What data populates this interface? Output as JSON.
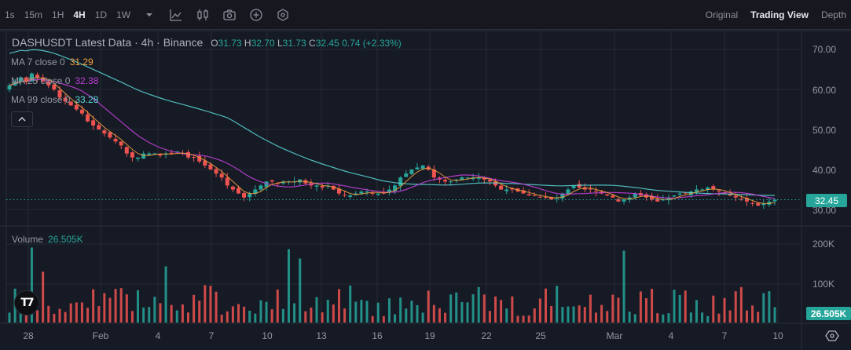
{
  "toolbar": {
    "timeframes": [
      {
        "label": "1s",
        "active": false
      },
      {
        "label": "15m",
        "active": false
      },
      {
        "label": "1H",
        "active": false
      },
      {
        "label": "4H",
        "active": true
      },
      {
        "label": "1D",
        "active": false
      },
      {
        "label": "1W",
        "active": false
      }
    ],
    "icons": [
      "dropdown-caret-icon",
      "indicators-icon",
      "candle-style-icon",
      "camera-icon",
      "add-icon",
      "settings-icon"
    ],
    "views": [
      {
        "label": "Original",
        "active": false
      },
      {
        "label": "Trading View",
        "active": true
      },
      {
        "label": "Depth",
        "active": false
      }
    ]
  },
  "legend": {
    "symbol": "DASHUSDT Latest Data · 4h · Binance",
    "open_key": "O",
    "open": "31.73",
    "high_key": "H",
    "high": "32.70",
    "low_key": "L",
    "low": "31.73",
    "close_key": "C",
    "close": "32.45",
    "change": "0.74 (+2.33%)"
  },
  "moving_averages": [
    {
      "label": "MA 7 close 0",
      "value": "31.29",
      "color": "#f0a03c"
    },
    {
      "label": "MA 25 close 0",
      "value": "32.38",
      "color": "#c03fd6"
    },
    {
      "label": "MA 99 close 0",
      "value": "33.28",
      "color": "#5ad8d8"
    }
  ],
  "volume": {
    "label": "Volume",
    "value": "26.505K"
  },
  "price_axis": {
    "ticks": [
      "70.00",
      "60.00",
      "50.00",
      "40.00",
      "30.00"
    ],
    "current_price": "32.45"
  },
  "volume_axis": {
    "ticks": [
      "200K",
      "100K"
    ],
    "current_volume": "26.505K"
  },
  "time_axis": {
    "labels": [
      "28",
      "Feb",
      "4",
      "7",
      "10",
      "13",
      "16",
      "19",
      "22",
      "25",
      "Mar",
      "4",
      "7",
      "10"
    ]
  },
  "colors": {
    "up": "#26a69a",
    "down": "#ef5350",
    "background": "#161a25",
    "grid": "#2a2e39"
  },
  "chart_data": {
    "type": "candlestick",
    "title": "DASHUSDT Latest Data · 4h · Binance",
    "ylim": [
      28,
      73
    ],
    "close_series": [
      61,
      62,
      63,
      62,
      64,
      63,
      62,
      61,
      60,
      58,
      57,
      56,
      55,
      54,
      52,
      51,
      50,
      49,
      48,
      47,
      46,
      44,
      43,
      43,
      44,
      44,
      44,
      43.5,
      44,
      44,
      44.5,
      44,
      43,
      43,
      42,
      41,
      40,
      39,
      38,
      36,
      35,
      34,
      33,
      34,
      35,
      36,
      37,
      37,
      36.5,
      37,
      37,
      37,
      37.5,
      36.5,
      36,
      36,
      35.5,
      36,
      35,
      34,
      33.5,
      33.5,
      34,
      34.5,
      34.5,
      34,
      34,
      34,
      35,
      36,
      38,
      39,
      40,
      40.5,
      41,
      40,
      38,
      37.5,
      37,
      37,
      37.5,
      38,
      38,
      38,
      38,
      37.5,
      37,
      36,
      35,
      35,
      35,
      34.5,
      34,
      33.5,
      33.5,
      33,
      33,
      32.5,
      33,
      34,
      35,
      36,
      35.5,
      35,
      35,
      34.5,
      34,
      33.5,
      33,
      32,
      32.5,
      33,
      34,
      33.5,
      33,
      32.5,
      32,
      32.5,
      33,
      33.5,
      34,
      34,
      34.5,
      35,
      35,
      35.5,
      35,
      34.5,
      34,
      33.5,
      33,
      32.5,
      32,
      31.5,
      31,
      31.5,
      32,
      32.45
    ]
  }
}
